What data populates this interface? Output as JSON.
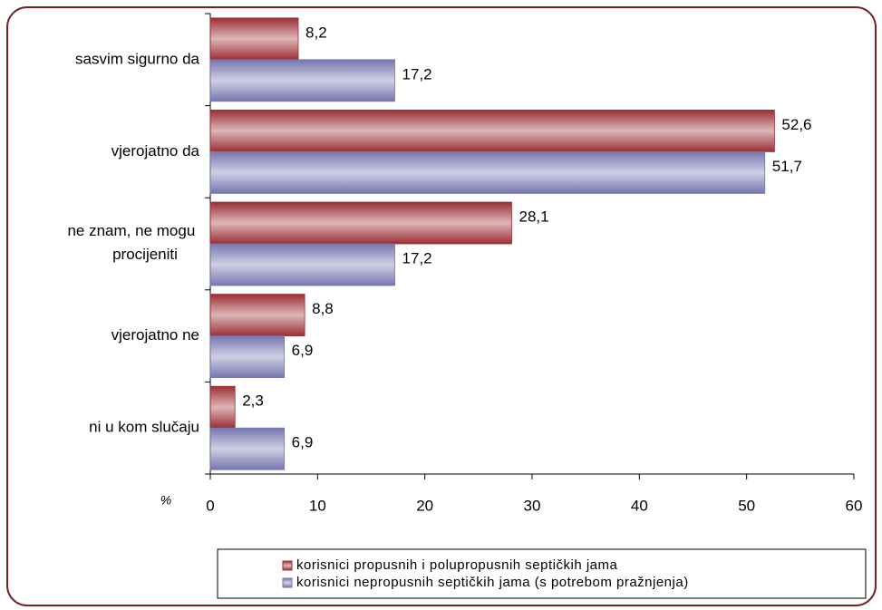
{
  "chart_data": {
    "type": "hbar",
    "categories": [
      "sasvim sigurno da",
      "vjerojatno da",
      "ne znam, ne mogu procijeniti",
      "vjerojatno ne",
      "ni u kom slučaju"
    ],
    "series": [
      {
        "name": "korisnici propusnih i polupropusnih septičkih jama",
        "color": "#9b2f35",
        "values": [
          8.2,
          52.6,
          28.1,
          8.8,
          2.3
        ],
        "value_labels": [
          "8,2",
          "52,6",
          "28,1",
          "8,8",
          "2,3"
        ]
      },
      {
        "name": "korisnici nepropusnih septičkih jama (s potrebom pražnjenja)",
        "color": "#7676b0",
        "values": [
          17.2,
          51.7,
          17.2,
          6.9,
          6.9
        ],
        "value_labels": [
          "17,2",
          "51,7",
          "17,2",
          "6,9",
          "6,9"
        ]
      }
    ],
    "xlabel": "%",
    "xlim": [
      0,
      60
    ],
    "xticks": [
      0,
      10,
      20,
      30,
      40,
      50,
      60
    ],
    "legend": "bottom-right"
  }
}
